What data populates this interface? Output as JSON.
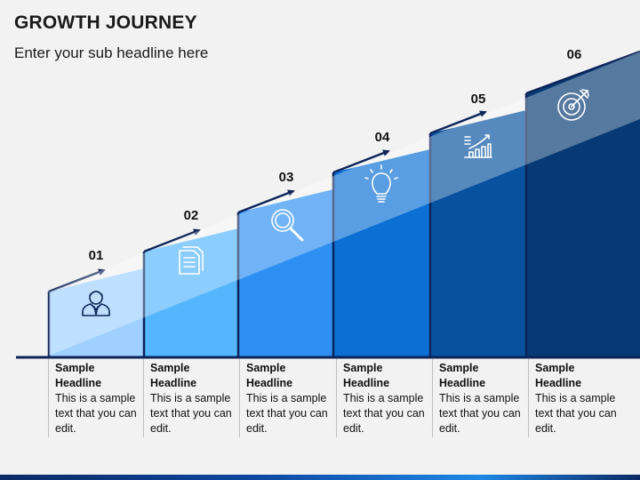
{
  "title": "GROWTH JOURNEY",
  "subtitle": "Enter your sub headline here",
  "steps": [
    {
      "number": "01",
      "icon": "businessman-icon",
      "headline": "Sample Headline",
      "text": "This is a sample text that you can edit.",
      "color": "#9fd0ff"
    },
    {
      "number": "02",
      "icon": "document-icon",
      "headline": "Sample Headline",
      "text": "This is a sample text that you can edit.",
      "color": "#55b5ff"
    },
    {
      "number": "03",
      "icon": "magnifier-icon",
      "headline": "Sample Headline",
      "text": "This is a sample text that you can edit.",
      "color": "#2e8ff3"
    },
    {
      "number": "04",
      "icon": "lightbulb-icon",
      "headline": "Sample Headline",
      "text": "This is a sample text that you can edit.",
      "color": "#0b6fd4"
    },
    {
      "number": "05",
      "icon": "growth-chart-icon",
      "headline": "Sample Headline",
      "text": "This is a sample text that you can edit.",
      "color": "#07519f"
    },
    {
      "number": "06",
      "icon": "target-icon",
      "headline": "Sample Headline",
      "text": "This is a sample text that you can edit.",
      "color": "#073a74"
    }
  ],
  "colors": {
    "outline": "#0d2559",
    "baseline": "#0d2559",
    "overlay": "#ffffff"
  }
}
